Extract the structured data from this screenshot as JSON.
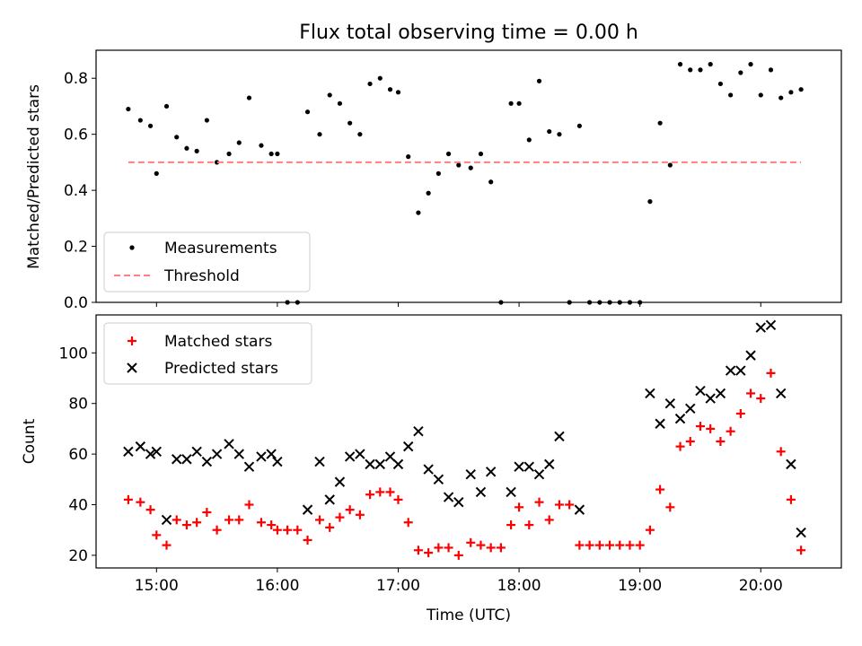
{
  "chart_data": [
    {
      "type": "scatter",
      "title": "Flux total observing time = 0.00 h",
      "ylabel": "Matched/Predicted stars",
      "xlim": [
        "14:30",
        "20:40"
      ],
      "ylim": [
        0,
        0.9
      ],
      "x_ticks": [
        "15:00",
        "16:00",
        "17:00",
        "18:00",
        "19:00",
        "20:00"
      ],
      "y_ticks": [
        "0.0",
        "0.2",
        "0.4",
        "0.6",
        "0.8"
      ],
      "grid": false,
      "legend": "lower-left",
      "series": [
        {
          "name": "Measurements",
          "color": "#000000",
          "marker": "dot",
          "points": [
            [
              "14:46",
              0.69
            ],
            [
              "14:52",
              0.65
            ],
            [
              "14:57",
              0.63
            ],
            [
              "15:00",
              0.46
            ],
            [
              "15:05",
              0.7
            ],
            [
              "15:10",
              0.59
            ],
            [
              "15:15",
              0.55
            ],
            [
              "15:20",
              0.54
            ],
            [
              "15:25",
              0.65
            ],
            [
              "15:30",
              0.5
            ],
            [
              "15:36",
              0.53
            ],
            [
              "15:41",
              0.57
            ],
            [
              "15:46",
              0.73
            ],
            [
              "15:52",
              0.56
            ],
            [
              "15:57",
              0.53
            ],
            [
              "16:00",
              0.53
            ],
            [
              "16:05",
              0.0
            ],
            [
              "16:10",
              0.0
            ],
            [
              "16:15",
              0.68
            ],
            [
              "16:21",
              0.6
            ],
            [
              "16:26",
              0.74
            ],
            [
              "16:31",
              0.71
            ],
            [
              "16:36",
              0.64
            ],
            [
              "16:41",
              0.6
            ],
            [
              "16:46",
              0.78
            ],
            [
              "16:51",
              0.8
            ],
            [
              "16:56",
              0.76
            ],
            [
              "17:00",
              0.75
            ],
            [
              "17:05",
              0.52
            ],
            [
              "17:10",
              0.32
            ],
            [
              "17:15",
              0.39
            ],
            [
              "17:20",
              0.46
            ],
            [
              "17:25",
              0.53
            ],
            [
              "17:30",
              0.49
            ],
            [
              "17:36",
              0.48
            ],
            [
              "17:41",
              0.53
            ],
            [
              "17:46",
              0.43
            ],
            [
              "17:51",
              0.0
            ],
            [
              "17:56",
              0.71
            ],
            [
              "18:00",
              0.71
            ],
            [
              "18:05",
              0.58
            ],
            [
              "18:10",
              0.79
            ],
            [
              "18:15",
              0.61
            ],
            [
              "18:20",
              0.6
            ],
            [
              "18:25",
              0.0
            ],
            [
              "18:30",
              0.63
            ],
            [
              "18:35",
              0.0
            ],
            [
              "18:40",
              0.0
            ],
            [
              "18:45",
              0.0
            ],
            [
              "18:50",
              0.0
            ],
            [
              "18:55",
              0.0
            ],
            [
              "19:00",
              0.0
            ],
            [
              "19:05",
              0.36
            ],
            [
              "19:10",
              0.64
            ],
            [
              "19:15",
              0.49
            ],
            [
              "19:20",
              0.85
            ],
            [
              "19:25",
              0.83
            ],
            [
              "19:30",
              0.83
            ],
            [
              "19:35",
              0.85
            ],
            [
              "19:40",
              0.78
            ],
            [
              "19:45",
              0.74
            ],
            [
              "19:50",
              0.82
            ],
            [
              "19:55",
              0.85
            ],
            [
              "20:00",
              0.74
            ],
            [
              "20:05",
              0.83
            ],
            [
              "20:10",
              0.73
            ],
            [
              "20:15",
              0.75
            ],
            [
              "20:20",
              0.76
            ]
          ]
        },
        {
          "name": "Threshold",
          "color": "#ff7f7f",
          "style": "dashed",
          "points": [
            [
              "14:46",
              0.5
            ],
            [
              "20:20",
              0.5
            ]
          ]
        }
      ]
    },
    {
      "type": "scatter",
      "xlabel": "Time (UTC)",
      "ylabel": "Count",
      "xlim": [
        "14:30",
        "20:40"
      ],
      "ylim": [
        15,
        115
      ],
      "x_ticks": [
        "15:00",
        "16:00",
        "17:00",
        "18:00",
        "19:00",
        "20:00"
      ],
      "y_ticks": [
        "20",
        "40",
        "60",
        "80",
        "100"
      ],
      "grid": false,
      "legend": "upper-left",
      "series": [
        {
          "name": "Matched stars",
          "color": "#ff0000",
          "marker": "plus",
          "points": [
            [
              "14:46",
              42
            ],
            [
              "14:52",
              41
            ],
            [
              "14:57",
              38
            ],
            [
              "15:00",
              28
            ],
            [
              "15:05",
              24
            ],
            [
              "15:10",
              34
            ],
            [
              "15:15",
              32
            ],
            [
              "15:20",
              33
            ],
            [
              "15:25",
              37
            ],
            [
              "15:30",
              30
            ],
            [
              "15:36",
              34
            ],
            [
              "15:41",
              34
            ],
            [
              "15:46",
              40
            ],
            [
              "15:52",
              33
            ],
            [
              "15:57",
              32
            ],
            [
              "16:00",
              30
            ],
            [
              "16:05",
              30
            ],
            [
              "16:10",
              30
            ],
            [
              "16:15",
              26
            ],
            [
              "16:21",
              34
            ],
            [
              "16:26",
              31
            ],
            [
              "16:31",
              35
            ],
            [
              "16:36",
              38
            ],
            [
              "16:41",
              36
            ],
            [
              "16:46",
              44
            ],
            [
              "16:51",
              45
            ],
            [
              "16:56",
              45
            ],
            [
              "17:00",
              42
            ],
            [
              "17:05",
              33
            ],
            [
              "17:10",
              22
            ],
            [
              "17:15",
              21
            ],
            [
              "17:20",
              23
            ],
            [
              "17:25",
              23
            ],
            [
              "17:30",
              20
            ],
            [
              "17:36",
              25
            ],
            [
              "17:41",
              24
            ],
            [
              "17:46",
              23
            ],
            [
              "17:51",
              23
            ],
            [
              "17:56",
              32
            ],
            [
              "18:00",
              39
            ],
            [
              "18:05",
              32
            ],
            [
              "18:10",
              41
            ],
            [
              "18:15",
              34
            ],
            [
              "18:20",
              40
            ],
            [
              "18:25",
              40
            ],
            [
              "18:30",
              24
            ],
            [
              "18:35",
              24
            ],
            [
              "18:40",
              24
            ],
            [
              "18:45",
              24
            ],
            [
              "18:50",
              24
            ],
            [
              "18:55",
              24
            ],
            [
              "19:00",
              24
            ],
            [
              "19:05",
              30
            ],
            [
              "19:10",
              46
            ],
            [
              "19:15",
              39
            ],
            [
              "19:20",
              63
            ],
            [
              "19:25",
              65
            ],
            [
              "19:30",
              71
            ],
            [
              "19:35",
              70
            ],
            [
              "19:40",
              65
            ],
            [
              "19:45",
              69
            ],
            [
              "19:50",
              76
            ],
            [
              "19:55",
              84
            ],
            [
              "20:00",
              82
            ],
            [
              "20:05",
              92
            ],
            [
              "20:10",
              61
            ],
            [
              "20:15",
              42
            ],
            [
              "20:20",
              22
            ]
          ]
        },
        {
          "name": "Predicted stars",
          "color": "#000000",
          "marker": "x",
          "points": [
            [
              "14:46",
              61
            ],
            [
              "14:52",
              63
            ],
            [
              "14:57",
              60
            ],
            [
              "15:00",
              61
            ],
            [
              "15:05",
              34
            ],
            [
              "15:10",
              58
            ],
            [
              "15:15",
              58
            ],
            [
              "15:20",
              61
            ],
            [
              "15:25",
              57
            ],
            [
              "15:30",
              60
            ],
            [
              "15:36",
              64
            ],
            [
              "15:41",
              60
            ],
            [
              "15:46",
              55
            ],
            [
              "15:52",
              59
            ],
            [
              "15:57",
              60
            ],
            [
              "16:00",
              57
            ],
            [
              "16:15",
              38
            ],
            [
              "16:21",
              57
            ],
            [
              "16:26",
              42
            ],
            [
              "16:31",
              49
            ],
            [
              "16:36",
              59
            ],
            [
              "16:41",
              60
            ],
            [
              "16:46",
              56
            ],
            [
              "16:51",
              56
            ],
            [
              "16:56",
              59
            ],
            [
              "17:00",
              56
            ],
            [
              "17:05",
              63
            ],
            [
              "17:10",
              69
            ],
            [
              "17:15",
              54
            ],
            [
              "17:20",
              50
            ],
            [
              "17:25",
              43
            ],
            [
              "17:30",
              41
            ],
            [
              "17:36",
              52
            ],
            [
              "17:41",
              45
            ],
            [
              "17:46",
              53
            ],
            [
              "17:56",
              45
            ],
            [
              "18:00",
              55
            ],
            [
              "18:05",
              55
            ],
            [
              "18:10",
              52
            ],
            [
              "18:15",
              56
            ],
            [
              "18:20",
              67
            ],
            [
              "18:30",
              38
            ],
            [
              "19:05",
              84
            ],
            [
              "19:10",
              72
            ],
            [
              "19:15",
              80
            ],
            [
              "19:20",
              74
            ],
            [
              "19:25",
              78
            ],
            [
              "19:30",
              85
            ],
            [
              "19:35",
              82
            ],
            [
              "19:40",
              84
            ],
            [
              "19:45",
              93
            ],
            [
              "19:50",
              93
            ],
            [
              "19:55",
              99
            ],
            [
              "20:00",
              110
            ],
            [
              "20:05",
              111
            ],
            [
              "20:10",
              84
            ],
            [
              "20:15",
              56
            ],
            [
              "20:20",
              29
            ]
          ]
        }
      ]
    }
  ]
}
